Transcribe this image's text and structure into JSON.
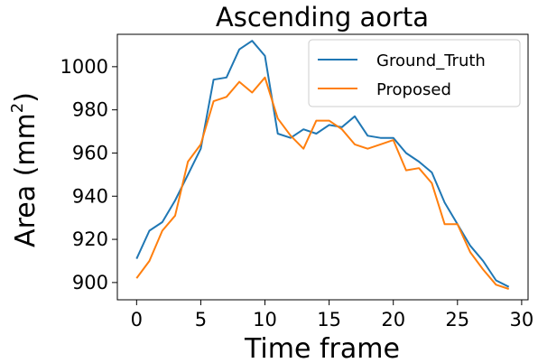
{
  "chart_data": {
    "type": "line",
    "title": "Ascending aorta",
    "xlabel": "Time frame",
    "ylabel_base": "Area (mm",
    "ylabel_sup": "2",
    "ylabel_end": ")",
    "xlim": [
      -1.5,
      30.5
    ],
    "ylim": [
      892,
      1015
    ],
    "xticks": [
      0,
      5,
      10,
      15,
      20,
      25,
      30
    ],
    "yticks": [
      900,
      920,
      940,
      960,
      980,
      1000
    ],
    "x": [
      0,
      1,
      2,
      3,
      4,
      5,
      6,
      7,
      8,
      9,
      10,
      11,
      12,
      13,
      14,
      15,
      16,
      17,
      18,
      19,
      20,
      21,
      22,
      23,
      24,
      25,
      26,
      27,
      28,
      29
    ],
    "series": [
      {
        "name": "Ground_Truth",
        "color": "#1f77b4",
        "values": [
          911,
          924,
          928,
          938,
          950,
          962,
          994,
          995,
          1008,
          1012,
          1005,
          969,
          967,
          971,
          969,
          973,
          972,
          977,
          968,
          967,
          967,
          960,
          956,
          951,
          937,
          927,
          917,
          910,
          901,
          898
        ]
      },
      {
        "name": "Proposed",
        "color": "#ff7f0e",
        "values": [
          902,
          910,
          924,
          931,
          956,
          964,
          984,
          986,
          993,
          988,
          995,
          976,
          968,
          962,
          975,
          975,
          971,
          964,
          962,
          964,
          966,
          952,
          953,
          946,
          927,
          927,
          914,
          906,
          899,
          897
        ]
      }
    ],
    "legend": "top-right",
    "grid": false
  }
}
